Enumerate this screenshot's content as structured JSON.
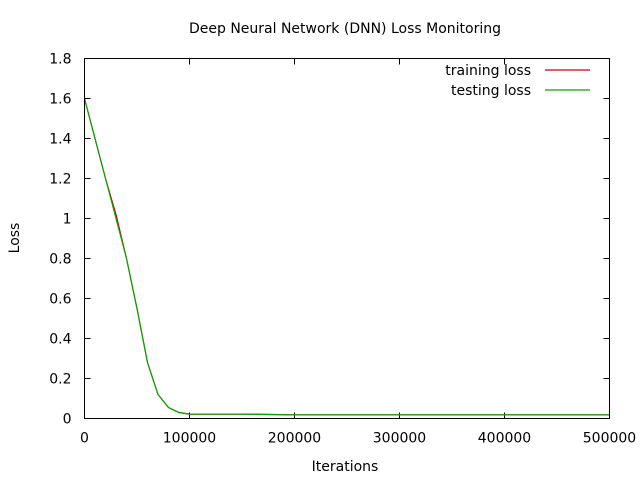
{
  "chart_data": {
    "type": "line",
    "title": "Deep Neural Network (DNN) Loss Monitoring",
    "xlabel": "Iterations",
    "ylabel": "Loss",
    "xlim": [
      0,
      500000
    ],
    "ylim": [
      0,
      1.8
    ],
    "x_ticks": [
      0,
      100000,
      200000,
      300000,
      400000,
      500000
    ],
    "y_ticks": [
      0,
      0.2,
      0.4,
      0.6,
      0.8,
      1,
      1.2,
      1.4,
      1.6,
      1.8
    ],
    "grid": false,
    "legend_position": "top-right",
    "series": [
      {
        "name": "training loss",
        "color": "#cc0000",
        "x": [
          0,
          10000,
          20000,
          30000,
          40000,
          50000,
          60000,
          70000,
          80000,
          90000,
          100000,
          120000,
          150000,
          200000,
          300000,
          400000,
          500000
        ],
        "y": [
          1.6,
          1.4,
          1.2,
          1.02,
          0.8,
          0.55,
          0.28,
          0.12,
          0.055,
          0.03,
          0.022,
          0.022,
          0.022,
          0.018,
          0.018,
          0.018,
          0.018
        ]
      },
      {
        "name": "testing loss",
        "color": "#00aa00",
        "x": [
          0,
          10000,
          20000,
          30000,
          40000,
          50000,
          60000,
          70000,
          80000,
          90000,
          100000,
          120000,
          150000,
          200000,
          300000,
          400000,
          500000
        ],
        "y": [
          1.6,
          1.4,
          1.2,
          1.0,
          0.8,
          0.55,
          0.28,
          0.12,
          0.055,
          0.03,
          0.022,
          0.022,
          0.022,
          0.018,
          0.018,
          0.018,
          0.018
        ]
      }
    ]
  }
}
